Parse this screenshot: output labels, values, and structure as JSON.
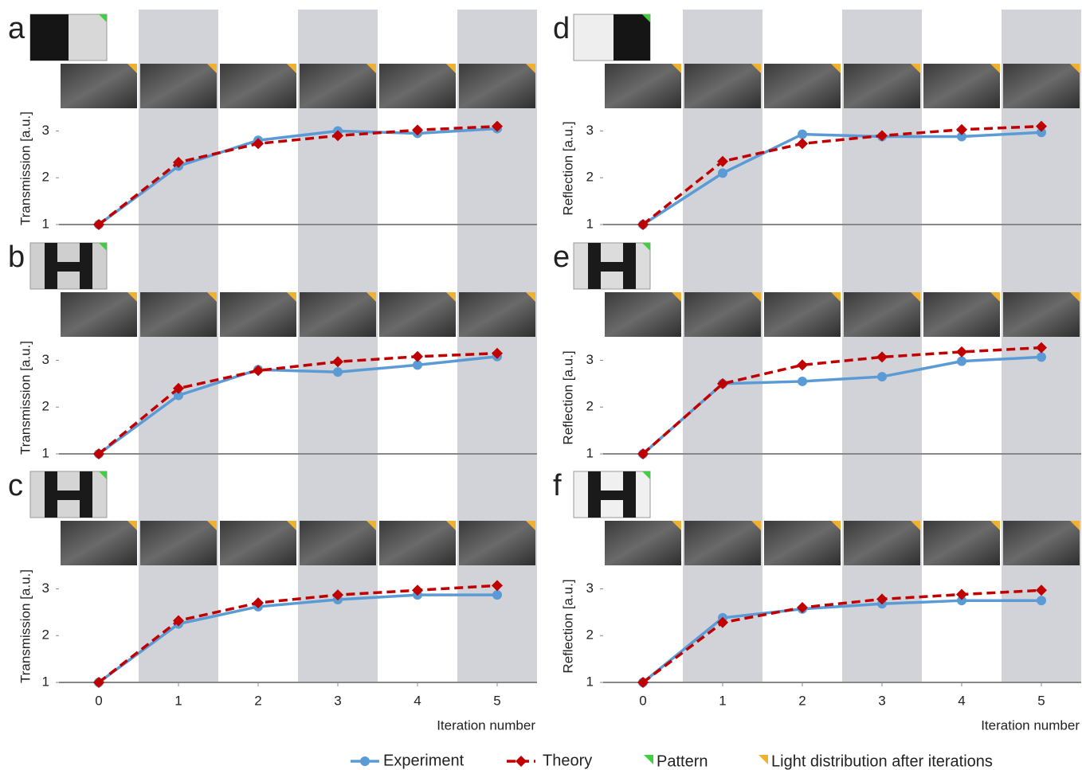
{
  "chart_data": [
    {
      "type": "line",
      "panel_label": "a",
      "ylabel": "Transmission [a.u.]",
      "x": [
        0,
        1,
        2,
        3,
        4,
        5
      ],
      "xlim": [
        -0.5,
        5.5
      ],
      "ylim": [
        1,
        3.4
      ],
      "yticks": [
        1,
        2,
        3
      ],
      "series": [
        {
          "name": "Experiment",
          "color": "#5b9bd5",
          "values": [
            1,
            2.25,
            2.8,
            3.0,
            2.95,
            3.05
          ]
        },
        {
          "name": "Theory",
          "color": "#c00000",
          "values": [
            1,
            2.33,
            2.73,
            2.9,
            3.02,
            3.1
          ]
        }
      ]
    },
    {
      "type": "line",
      "panel_label": "b",
      "ylabel": "Transmission [a.u.]",
      "x": [
        0,
        1,
        2,
        3,
        4,
        5
      ],
      "xlim": [
        -0.5,
        5.5
      ],
      "ylim": [
        1,
        3.4
      ],
      "yticks": [
        1,
        2,
        3
      ],
      "series": [
        {
          "color": "#5b9bd5",
          "values": [
            1,
            2.25,
            2.8,
            2.75,
            2.9,
            3.08
          ]
        },
        {
          "color": "#c00000",
          "values": [
            1,
            2.4,
            2.78,
            2.97,
            3.08,
            3.15
          ]
        }
      ]
    },
    {
      "type": "line",
      "panel_label": "c",
      "ylabel": "Transmission [a.u.]",
      "xlabel": "Iteration number",
      "x": [
        0,
        1,
        2,
        3,
        4,
        5
      ],
      "xticks": [
        0,
        1,
        2,
        3,
        4,
        5
      ],
      "xlim": [
        -0.5,
        5.5
      ],
      "ylim": [
        1,
        3.4
      ],
      "yticks": [
        1,
        2,
        3
      ],
      "series": [
        {
          "color": "#5b9bd5",
          "values": [
            1,
            2.25,
            2.62,
            2.77,
            2.87,
            2.87
          ]
        },
        {
          "color": "#c00000",
          "values": [
            1,
            2.32,
            2.7,
            2.87,
            2.97,
            3.07
          ]
        }
      ]
    },
    {
      "type": "line",
      "panel_label": "d",
      "ylabel": "Reflection [a.u.]",
      "x": [
        0,
        1,
        2,
        3,
        4,
        5
      ],
      "xlim": [
        -0.5,
        5.5
      ],
      "ylim": [
        1,
        3.4
      ],
      "yticks": [
        1,
        2,
        3
      ],
      "series": [
        {
          "color": "#5b9bd5",
          "values": [
            1,
            2.1,
            2.93,
            2.88,
            2.88,
            2.97
          ]
        },
        {
          "color": "#c00000",
          "values": [
            1,
            2.35,
            2.73,
            2.9,
            3.03,
            3.1
          ]
        }
      ]
    },
    {
      "type": "line",
      "panel_label": "e",
      "ylabel": "Reflection [a.u.]",
      "x": [
        0,
        1,
        2,
        3,
        4,
        5
      ],
      "xlim": [
        -0.5,
        5.5
      ],
      "ylim": [
        1,
        3.4
      ],
      "yticks": [
        1,
        2,
        3
      ],
      "series": [
        {
          "color": "#5b9bd5",
          "values": [
            1,
            2.5,
            2.55,
            2.65,
            2.98,
            3.07
          ]
        },
        {
          "color": "#c00000",
          "values": [
            1,
            2.5,
            2.9,
            3.07,
            3.18,
            3.27
          ]
        }
      ]
    },
    {
      "type": "line",
      "panel_label": "f",
      "ylabel": "Reflection [a.u.]",
      "xlabel": "Iteration number",
      "x": [
        0,
        1,
        2,
        3,
        4,
        5
      ],
      "xticks": [
        0,
        1,
        2,
        3,
        4,
        5
      ],
      "xlim": [
        -0.5,
        5.5
      ],
      "ylim": [
        1,
        3.4
      ],
      "yticks": [
        1,
        2,
        3
      ],
      "series": [
        {
          "color": "#5b9bd5",
          "values": [
            1,
            2.38,
            2.57,
            2.68,
            2.75,
            2.75
          ]
        },
        {
          "color": "#c00000",
          "values": [
            1,
            2.28,
            2.6,
            2.78,
            2.88,
            2.97
          ]
        }
      ]
    }
  ],
  "legend_extra": [
    {
      "name": "Pattern",
      "color": "#3fcf3f"
    },
    {
      "name": "Light distribution after iterations",
      "color": "#f0b030"
    }
  ]
}
